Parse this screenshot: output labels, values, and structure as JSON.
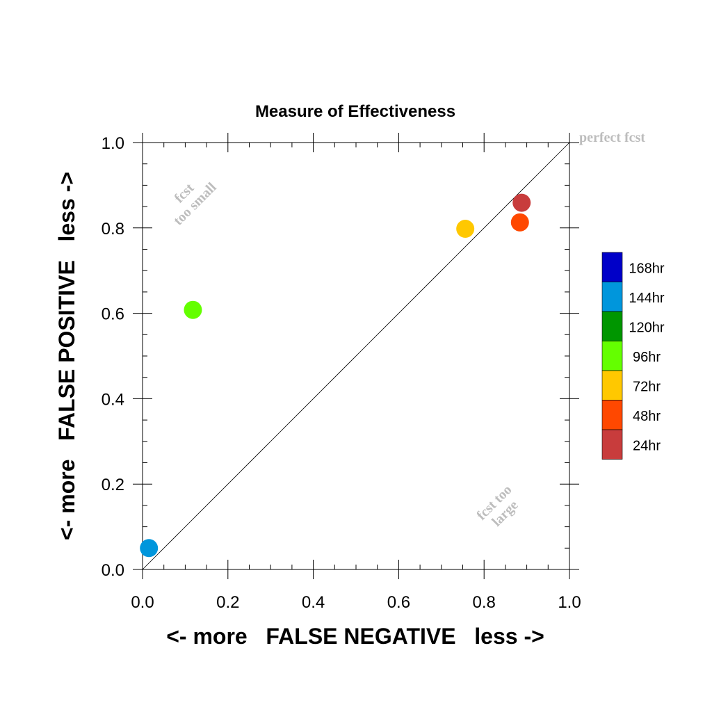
{
  "chart_data": {
    "type": "scatter",
    "title": "Measure of Effectiveness",
    "xlabel": "<- more   FALSE NEGATIVE   less ->",
    "ylabel": "<- more   FALSE POSITIVE   less ->",
    "xlim": [
      0.0,
      1.0
    ],
    "ylim": [
      0.0,
      1.0
    ],
    "xticks": [
      "0.0",
      "0.2",
      "0.4",
      "0.6",
      "0.8",
      "1.0"
    ],
    "yticks": [
      "0.0",
      "0.2",
      "0.4",
      "0.6",
      "0.8",
      "1.0"
    ],
    "grid": false,
    "reference_line": "diagonal y = x",
    "annotations": {
      "perfect": "perfect fcst",
      "too_small_1": "fcst",
      "too_small_2": "too small",
      "too_large_1": "fcst too",
      "too_large_2": "large"
    },
    "legend": {
      "placement": "right",
      "entries": [
        {
          "label": "168hr",
          "color": "#0000c8"
        },
        {
          "label": "144hr",
          "color": "#0096dc"
        },
        {
          "label": "120hr",
          "color": "#009600"
        },
        {
          "label": "96hr",
          "color": "#64ff00"
        },
        {
          "label": "72hr",
          "color": "#ffc800"
        },
        {
          "label": "48hr",
          "color": "#ff4800"
        },
        {
          "label": "24hr",
          "color": "#c83c3c"
        }
      ]
    },
    "points": [
      {
        "series": "144hr",
        "x": 0.015,
        "y": 0.05,
        "color": "#0096dc"
      },
      {
        "series": "96hr",
        "x": 0.118,
        "y": 0.608,
        "color": "#64ff00"
      },
      {
        "series": "72hr",
        "x": 0.756,
        "y": 0.798,
        "color": "#ffc800"
      },
      {
        "series": "48hr",
        "x": 0.884,
        "y": 0.813,
        "color": "#ff4800"
      },
      {
        "series": "24hr",
        "x": 0.888,
        "y": 0.859,
        "color": "#c83c3c"
      }
    ]
  }
}
